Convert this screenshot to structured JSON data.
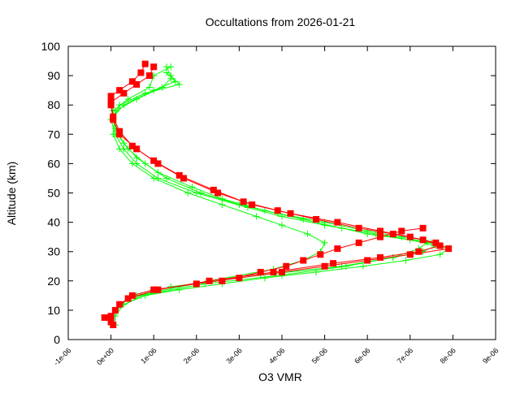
{
  "chart_data": {
    "type": "line",
    "title": "Occultations from 2026-01-21",
    "xlabel": "O3 VMR",
    "ylabel": "Altitude (km)",
    "xlim": [
      -1e-06,
      9e-06
    ],
    "ylim": [
      0,
      100
    ],
    "xticks": [
      -1e-06,
      0,
      1e-06,
      2e-06,
      3e-06,
      4e-06,
      5e-06,
      6e-06,
      7e-06,
      8e-06,
      9e-06
    ],
    "xtick_labels": [
      "-1e-06",
      "0e+00",
      "1e-06",
      "2e-06",
      "3e-06",
      "4e-06",
      "5e-06",
      "6e-06",
      "7e-06",
      "8e-06",
      "9e-06"
    ],
    "yticks": [
      0,
      10,
      20,
      30,
      40,
      50,
      60,
      70,
      80,
      90,
      100
    ],
    "ytick_labels": [
      "0",
      "10",
      "20",
      "30",
      "40",
      "50",
      "60",
      "70",
      "80",
      "90",
      "100"
    ],
    "grid": false,
    "legend": "none",
    "series": [
      {
        "color": "#00ff00",
        "marker": "plus",
        "points": [
          [
            1e-07,
            5
          ],
          [
            1e-07,
            8
          ],
          [
            3e-07,
            12
          ],
          [
            8e-07,
            15
          ],
          [
            1.6e-06,
            17
          ],
          [
            2.6e-06,
            19
          ],
          [
            3.6e-06,
            21
          ],
          [
            4.8e-06,
            23
          ],
          [
            5.9e-06,
            25
          ],
          [
            6.9e-06,
            27
          ],
          [
            7.7e-06,
            29
          ],
          [
            7.9e-06,
            31
          ],
          [
            7.5e-06,
            33
          ],
          [
            6.8e-06,
            35
          ],
          [
            6e-06,
            37
          ],
          [
            5e-06,
            40
          ],
          [
            3.9e-06,
            43
          ],
          [
            3e-06,
            46
          ],
          [
            2.1e-06,
            50
          ],
          [
            1.3e-06,
            55
          ],
          [
            8e-07,
            60
          ],
          [
            4e-07,
            65
          ],
          [
            1.5e-07,
            70
          ],
          [
            5e-08,
            75
          ],
          [
            2e-07,
            80
          ],
          [
            8e-07,
            84
          ],
          [
            1.6e-06,
            87
          ],
          [
            1.4e-06,
            90
          ],
          [
            1.3e-06,
            93
          ]
        ]
      },
      {
        "color": "#00ff00",
        "marker": "plus",
        "points": [
          [
            4e-07,
            14
          ],
          [
            1.4e-06,
            18
          ],
          [
            3.5e-06,
            22
          ],
          [
            5.4e-06,
            25
          ],
          [
            6.6e-06,
            28
          ],
          [
            7.2e-06,
            31
          ],
          [
            7.4e-06,
            33
          ],
          [
            6.2e-06,
            36
          ],
          [
            5e-06,
            39
          ],
          [
            4e-06,
            42
          ],
          [
            3.2e-06,
            45
          ],
          [
            2e-06,
            50
          ],
          [
            1.1e-06,
            55
          ],
          [
            6e-07,
            60
          ],
          [
            3e-07,
            65
          ],
          [
            1e-07,
            70
          ],
          [
            0,
            75
          ],
          [
            3e-07,
            80
          ],
          [
            1e-06,
            85
          ],
          [
            1.5e-06,
            88
          ],
          [
            1.3e-06,
            91
          ]
        ]
      },
      {
        "color": "#00ff00",
        "marker": "plus",
        "points": [
          [
            6e-07,
            15
          ],
          [
            2.3e-06,
            20
          ],
          [
            3.8e-06,
            24
          ],
          [
            4.5e-06,
            27
          ],
          [
            4.9e-06,
            30
          ],
          [
            5e-06,
            33
          ],
          [
            4.6e-06,
            36
          ],
          [
            4e-06,
            39
          ],
          [
            3.4e-06,
            42
          ],
          [
            2.6e-06,
            46
          ],
          [
            1.8e-06,
            50
          ],
          [
            1e-06,
            55
          ],
          [
            5e-07,
            60
          ],
          [
            2e-07,
            65
          ],
          [
            5e-08,
            70
          ],
          [
            1e-07,
            78
          ],
          [
            6e-07,
            82
          ],
          [
            1.2e-06,
            86
          ],
          [
            1.4e-06,
            89
          ]
        ]
      },
      {
        "color": "#00ff00",
        "marker": "plus",
        "points": [
          [
            1e-07,
            10
          ],
          [
            7e-07,
            15
          ],
          [
            2.2e-06,
            19
          ],
          [
            4e-06,
            22
          ],
          [
            5.5e-06,
            25
          ],
          [
            6.6e-06,
            28
          ],
          [
            7.3e-06,
            30
          ],
          [
            7.6e-06,
            32
          ],
          [
            7e-06,
            34
          ],
          [
            6e-06,
            36
          ],
          [
            5.4e-06,
            38
          ],
          [
            4.5e-06,
            41
          ],
          [
            3.6e-06,
            44
          ],
          [
            2.6e-06,
            48
          ],
          [
            1.9e-06,
            52
          ],
          [
            1.1e-06,
            57
          ],
          [
            6e-07,
            62
          ],
          [
            3e-07,
            67
          ],
          [
            1e-07,
            72
          ],
          [
            5e-08,
            78
          ],
          [
            4e-07,
            82
          ],
          [
            9e-07,
            86
          ],
          [
            1e-06,
            90
          ],
          [
            1.4e-06,
            93
          ]
        ]
      },
      {
        "color": "#ff0000",
        "marker": "square",
        "points": [
          [
            5e-08,
            5
          ],
          [
            -1.5e-07,
            7.5
          ],
          [
            0,
            8
          ],
          [
            2e-07,
            12
          ],
          [
            5e-07,
            15
          ],
          [
            1e-06,
            17
          ],
          [
            2e-06,
            19
          ],
          [
            3e-06,
            21
          ],
          [
            4e-06,
            23
          ],
          [
            5e-06,
            25
          ],
          [
            6e-06,
            27
          ],
          [
            7e-06,
            29
          ],
          [
            7.9e-06,
            31
          ],
          [
            7.6e-06,
            33
          ],
          [
            7e-06,
            35
          ],
          [
            6.3e-06,
            37
          ],
          [
            5.3e-06,
            40
          ],
          [
            4.2e-06,
            43
          ],
          [
            3.3e-06,
            46
          ],
          [
            2.5e-06,
            50
          ],
          [
            1.7e-06,
            55
          ],
          [
            1.1e-06,
            60
          ],
          [
            6e-07,
            65
          ],
          [
            2e-07,
            70
          ],
          [
            5e-08,
            75
          ],
          [
            0,
            80
          ],
          [
            0,
            83
          ],
          [
            2e-07,
            85
          ],
          [
            5e-07,
            88
          ],
          [
            7e-07,
            91
          ],
          [
            8e-07,
            94
          ]
        ]
      },
      {
        "color": "#ff0000",
        "marker": "square",
        "points": [
          [
            0,
            6
          ],
          [
            1e-07,
            10
          ],
          [
            4e-07,
            14
          ],
          [
            1.1e-06,
            17
          ],
          [
            2.3e-06,
            20
          ],
          [
            3.8e-06,
            23
          ],
          [
            5.2e-06,
            26
          ],
          [
            6.3e-06,
            28
          ],
          [
            7.2e-06,
            30
          ],
          [
            7.7e-06,
            32
          ],
          [
            7.3e-06,
            34
          ],
          [
            6.6e-06,
            36
          ],
          [
            5.8e-06,
            38
          ],
          [
            4.8e-06,
            41
          ],
          [
            3.9e-06,
            44
          ],
          [
            3.1e-06,
            47
          ],
          [
            2.4e-06,
            51
          ],
          [
            1.6e-06,
            56
          ],
          [
            1e-06,
            61
          ],
          [
            5e-07,
            66
          ],
          [
            2e-07,
            71
          ],
          [
            5e-08,
            76
          ],
          [
            0,
            81
          ],
          [
            3e-07,
            84
          ],
          [
            6e-07,
            87
          ],
          [
            9e-07,
            90
          ],
          [
            1e-06,
            93
          ]
        ]
      },
      {
        "color": "#ff0000",
        "marker": "square",
        "points": [
          [
            2.6e-06,
            20
          ],
          [
            3.5e-06,
            23
          ],
          [
            4.1e-06,
            25
          ],
          [
            4.5e-06,
            27
          ],
          [
            4.9e-06,
            29
          ],
          [
            5.3e-06,
            31
          ],
          [
            5.8e-06,
            33
          ],
          [
            6.3e-06,
            35
          ],
          [
            6.8e-06,
            37
          ],
          [
            7.3e-06,
            38
          ]
        ]
      }
    ]
  }
}
